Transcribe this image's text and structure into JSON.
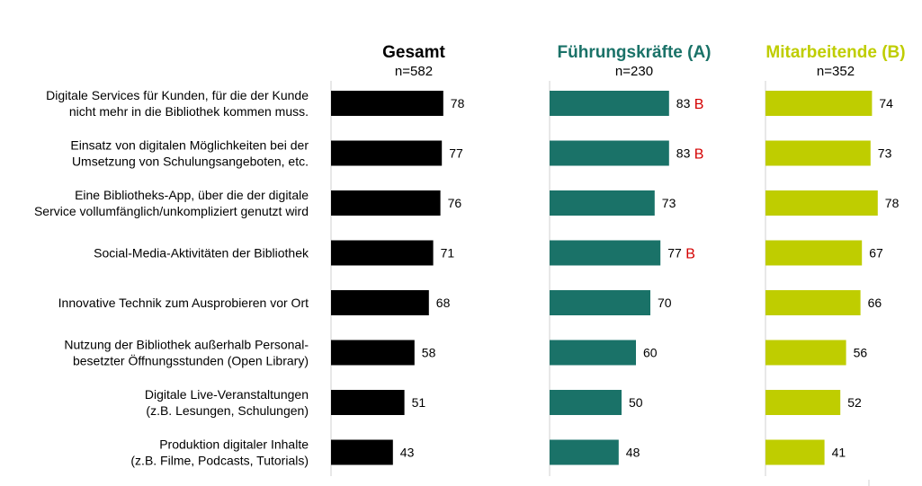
{
  "chart_data": {
    "type": "bar",
    "orientation": "horizontal",
    "categories": [
      [
        "Digitale Services für Kunden, für die der Kunde",
        "nicht mehr in die Bibliothek kommen muss."
      ],
      [
        "Einsatz von digitalen Möglichkeiten bei der",
        "Umsetzung von Schulungsangeboten, etc."
      ],
      [
        "Eine Bibliotheks-App, über die der digitale",
        "Service vollumfänglich/unkompliziert genutzt wird"
      ],
      [
        "Social-Media-Aktivitäten der Bibliothek"
      ],
      [
        "Innovative Technik zum Ausprobieren vor Ort"
      ],
      [
        "Nutzung der Bibliothek außerhalb Personal-",
        "besetzter Öffnungsstunden (Open Library)"
      ],
      [
        "Digitale Live-Veranstaltungen",
        "(z.B. Lesungen, Schulungen)"
      ],
      [
        "Produktion digitaler Inhalte",
        "(z.B. Filme, Podcasts, Tutorials)"
      ]
    ],
    "series": [
      {
        "name": "Gesamt",
        "n": "n=582",
        "color": "#000000",
        "values": [
          78,
          77,
          76,
          71,
          68,
          58,
          51,
          43
        ],
        "sig": [
          "",
          "",
          "",
          "",
          "",
          "",
          "",
          ""
        ]
      },
      {
        "name": "Führungskräfte (A)",
        "n": "n=230",
        "color": "#1a7268",
        "values": [
          83,
          83,
          73,
          77,
          70,
          60,
          50,
          48
        ],
        "sig": [
          "B",
          "B",
          "",
          "B",
          "",
          "",
          "",
          ""
        ]
      },
      {
        "name": "Mitarbeitende (B)",
        "n": "n=352",
        "color": "#bfcd00",
        "values": [
          74,
          73,
          78,
          67,
          66,
          56,
          52,
          41
        ],
        "sig": [
          "",
          "",
          "",
          "",
          "",
          "",
          "",
          ""
        ]
      }
    ],
    "xlim": [
      0,
      100
    ],
    "grid": false,
    "legend": "top"
  }
}
